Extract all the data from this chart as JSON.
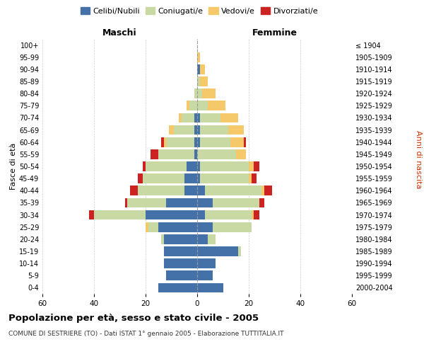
{
  "age_groups": [
    "0-4",
    "5-9",
    "10-14",
    "15-19",
    "20-24",
    "25-29",
    "30-34",
    "35-39",
    "40-44",
    "45-49",
    "50-54",
    "55-59",
    "60-64",
    "65-69",
    "70-74",
    "75-79",
    "80-84",
    "85-89",
    "90-94",
    "95-99",
    "100+"
  ],
  "years": [
    "2000-2004",
    "1995-1999",
    "1990-1994",
    "1985-1989",
    "1980-1984",
    "1975-1979",
    "1970-1974",
    "1965-1969",
    "1960-1964",
    "1955-1959",
    "1950-1954",
    "1945-1949",
    "1940-1944",
    "1935-1939",
    "1930-1934",
    "1925-1929",
    "1920-1924",
    "1915-1919",
    "1910-1914",
    "1905-1909",
    "≤ 1904"
  ],
  "male": {
    "celibe": [
      15,
      12,
      13,
      13,
      13,
      15,
      20,
      12,
      5,
      5,
      4,
      1,
      1,
      1,
      1,
      0,
      0,
      0,
      0,
      0,
      0
    ],
    "coniugato": [
      0,
      0,
      0,
      0,
      1,
      4,
      20,
      15,
      18,
      16,
      16,
      14,
      11,
      8,
      5,
      3,
      1,
      0,
      0,
      0,
      0
    ],
    "vedovo": [
      0,
      0,
      0,
      0,
      0,
      1,
      0,
      0,
      0,
      0,
      0,
      0,
      1,
      2,
      1,
      1,
      0,
      0,
      0,
      0,
      0
    ],
    "divorziato": [
      0,
      0,
      0,
      0,
      0,
      0,
      2,
      1,
      3,
      2,
      1,
      3,
      1,
      0,
      0,
      0,
      0,
      0,
      0,
      0,
      0
    ]
  },
  "female": {
    "nubile": [
      10,
      6,
      7,
      16,
      4,
      6,
      3,
      6,
      3,
      1,
      1,
      0,
      1,
      1,
      1,
      0,
      0,
      0,
      1,
      0,
      0
    ],
    "coniugata": [
      0,
      0,
      0,
      1,
      3,
      15,
      18,
      18,
      22,
      19,
      19,
      15,
      12,
      11,
      8,
      4,
      2,
      1,
      0,
      0,
      0
    ],
    "vedova": [
      0,
      0,
      0,
      0,
      0,
      0,
      1,
      0,
      1,
      1,
      2,
      4,
      5,
      6,
      7,
      7,
      5,
      3,
      2,
      1,
      0
    ],
    "divorziata": [
      0,
      0,
      0,
      0,
      0,
      0,
      2,
      2,
      3,
      2,
      2,
      0,
      1,
      0,
      0,
      0,
      0,
      0,
      0,
      0,
      0
    ]
  },
  "colors": {
    "celibe": "#4472a8",
    "coniugato": "#c8d9a4",
    "vedovo": "#f5c96a",
    "divorziato": "#cc2222"
  },
  "xlim": 60,
  "title": "Popolazione per età, sesso e stato civile - 2005",
  "subtitle": "COMUNE DI SESTRIERE (TO) - Dati ISTAT 1° gennaio 2005 - Elaborazione TUTTITALIA.IT",
  "xlabel_left": "Maschi",
  "xlabel_right": "Femmine",
  "ylabel_left": "Fasce di età",
  "ylabel_right": "Anni di nascita",
  "bg_color": "#ffffff",
  "grid_color": "#cccccc"
}
